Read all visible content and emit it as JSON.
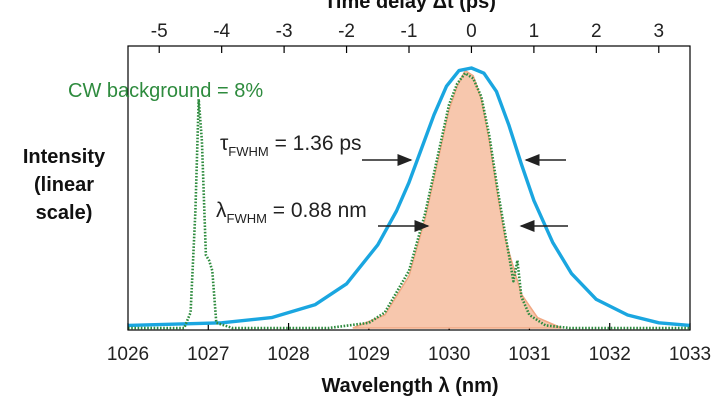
{
  "chart_data": {
    "type": "line",
    "side_label": [
      "Intensity",
      "(linear",
      "scale)"
    ],
    "xlabel": "Wavelength λ (nm)",
    "xlim": [
      1026,
      1033
    ],
    "x_ticks": [
      "1026",
      "1027",
      "1028",
      "1029",
      "1030",
      "1031",
      "1032",
      "1033"
    ],
    "top_axis": {
      "label": "Time delay Δt (ps)",
      "ticks": [
        "-5",
        "-4",
        "-3",
        "-2",
        "-1",
        "0",
        "1",
        "2",
        "3"
      ],
      "tick_values": [
        -5,
        -4,
        -3,
        -2,
        -1,
        0,
        1,
        2,
        3
      ],
      "xlim": [
        -5.5,
        3.5
      ]
    },
    "annotations": {
      "cw": "CW background = 8%",
      "tau_symbol": "τ",
      "tau_sub": "FWHM",
      "tau_value": " = 1.36 ps",
      "lambda_symbol": "λ",
      "lambda_sub": "FWHM",
      "lambda_value": " = 0.88 nm"
    },
    "series": [
      {
        "axis": "top",
        "color": "#1aa6e0",
        "x": [
          -5.5,
          -4.0,
          -3.2,
          -2.5,
          -2.0,
          -1.5,
          -1.2,
          -1.0,
          -0.8,
          -0.6,
          -0.4,
          -0.2,
          0.0,
          0.2,
          0.4,
          0.6,
          0.8,
          1.0,
          1.3,
          1.6,
          2.0,
          2.5,
          3.0,
          3.5
        ],
        "y": [
          0.01,
          0.02,
          0.04,
          0.09,
          0.17,
          0.32,
          0.45,
          0.56,
          0.69,
          0.82,
          0.93,
          0.99,
          1.0,
          0.98,
          0.91,
          0.78,
          0.63,
          0.49,
          0.33,
          0.21,
          0.11,
          0.05,
          0.02,
          0.01
        ]
      },
      {
        "axis": "bottom",
        "style": "filled",
        "color": "#f1a883",
        "fill": "#f7c7ad",
        "x": [
          1028.8,
          1029.2,
          1029.5,
          1029.7,
          1029.9,
          1030.0,
          1030.1,
          1030.2,
          1030.3,
          1030.4,
          1030.5,
          1030.6,
          1030.7,
          1030.9,
          1031.1,
          1031.4
        ],
        "y": [
          0.0,
          0.05,
          0.2,
          0.42,
          0.7,
          0.84,
          0.93,
          0.99,
          0.97,
          0.88,
          0.72,
          0.52,
          0.34,
          0.13,
          0.04,
          0.0
        ]
      },
      {
        "axis": "bottom",
        "style": "dotted",
        "color": "#2e8b3e",
        "x": [
          1026.0,
          1026.7,
          1026.78,
          1026.84,
          1026.88,
          1026.92,
          1026.97,
          1027.01,
          1027.05,
          1027.1,
          1027.3,
          1028.5,
          1029.0,
          1029.2,
          1029.5,
          1029.7,
          1029.9,
          1030.0,
          1030.1,
          1030.2,
          1030.3,
          1030.4,
          1030.5,
          1030.6,
          1030.7,
          1030.75,
          1030.8,
          1030.85,
          1030.9,
          1031.0,
          1031.2,
          1031.5,
          1033.0
        ],
        "y": [
          0.0,
          0.0,
          0.06,
          0.45,
          0.88,
          0.72,
          0.28,
          0.26,
          0.22,
          0.02,
          0.0,
          0.0,
          0.02,
          0.06,
          0.22,
          0.44,
          0.72,
          0.86,
          0.94,
          0.98,
          0.96,
          0.89,
          0.74,
          0.54,
          0.36,
          0.27,
          0.18,
          0.26,
          0.12,
          0.05,
          0.01,
          0.0,
          0.0
        ]
      }
    ]
  }
}
